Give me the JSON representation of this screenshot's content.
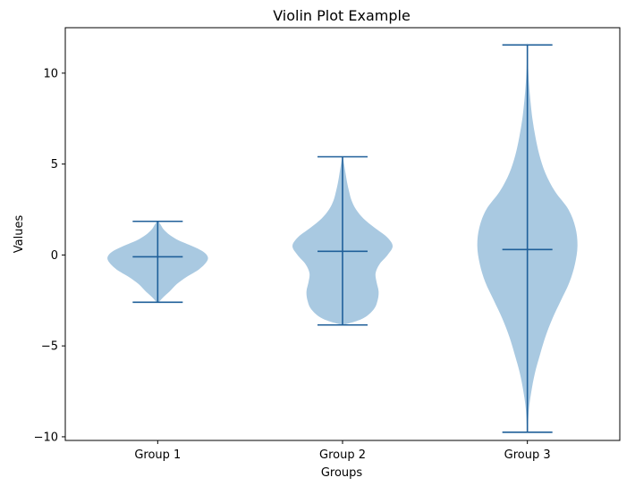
{
  "chart_data": {
    "type": "violin",
    "title": "Violin Plot Example",
    "xlabel": "Groups",
    "ylabel": "Values",
    "categories": [
      "Group 1",
      "Group 2",
      "Group 3"
    ],
    "ylim": [
      -10.2,
      12.5
    ],
    "yticks": [
      -10,
      -5,
      0,
      5,
      10
    ],
    "ytick_labels": [
      "−10",
      "−5",
      "0",
      "5",
      "10"
    ],
    "grid": false,
    "colors": {
      "body": "#a9c9e1",
      "line": "#1f5f99"
    },
    "series": [
      {
        "category": "Group 1",
        "min": -2.6,
        "max": 1.85,
        "mean": -0.1,
        "profile": [
          [
            -2.6,
            0.02
          ],
          [
            -2.3,
            0.12
          ],
          [
            -2.0,
            0.24
          ],
          [
            -1.6,
            0.38
          ],
          [
            -1.2,
            0.58
          ],
          [
            -0.8,
            0.82
          ],
          [
            -0.4,
            0.97
          ],
          [
            -0.1,
            1.0
          ],
          [
            0.2,
            0.9
          ],
          [
            0.5,
            0.68
          ],
          [
            0.8,
            0.42
          ],
          [
            1.1,
            0.24
          ],
          [
            1.4,
            0.12
          ],
          [
            1.7,
            0.05
          ],
          [
            1.85,
            0.01
          ]
        ]
      },
      {
        "category": "Group 2",
        "min": -3.85,
        "max": 5.4,
        "mean": 0.2,
        "profile": [
          [
            -3.85,
            0.02
          ],
          [
            -3.5,
            0.4
          ],
          [
            -3.0,
            0.62
          ],
          [
            -2.5,
            0.7
          ],
          [
            -2.0,
            0.72
          ],
          [
            -1.5,
            0.68
          ],
          [
            -1.0,
            0.66
          ],
          [
            -0.5,
            0.74
          ],
          [
            0.0,
            0.9
          ],
          [
            0.5,
            1.0
          ],
          [
            1.0,
            0.88
          ],
          [
            1.5,
            0.64
          ],
          [
            2.0,
            0.42
          ],
          [
            2.5,
            0.27
          ],
          [
            3.0,
            0.18
          ],
          [
            3.5,
            0.13
          ],
          [
            4.0,
            0.09
          ],
          [
            4.5,
            0.06
          ],
          [
            5.0,
            0.03
          ],
          [
            5.4,
            0.005
          ]
        ]
      },
      {
        "category": "Group 3",
        "min": -9.75,
        "max": 11.55,
        "mean": 0.3,
        "profile": [
          [
            -9.75,
            0.005
          ],
          [
            -8.5,
            0.03
          ],
          [
            -7.5,
            0.08
          ],
          [
            -6.5,
            0.15
          ],
          [
            -5.5,
            0.25
          ],
          [
            -4.5,
            0.36
          ],
          [
            -3.5,
            0.5
          ],
          [
            -2.5,
            0.67
          ],
          [
            -1.5,
            0.84
          ],
          [
            -0.5,
            0.95
          ],
          [
            0.5,
            1.0
          ],
          [
            1.5,
            0.96
          ],
          [
            2.5,
            0.82
          ],
          [
            3.5,
            0.55
          ],
          [
            4.5,
            0.36
          ],
          [
            5.5,
            0.24
          ],
          [
            6.5,
            0.16
          ],
          [
            7.5,
            0.1
          ],
          [
            8.5,
            0.06
          ],
          [
            9.5,
            0.03
          ],
          [
            10.5,
            0.012
          ],
          [
            11.55,
            0.003
          ]
        ]
      }
    ]
  }
}
